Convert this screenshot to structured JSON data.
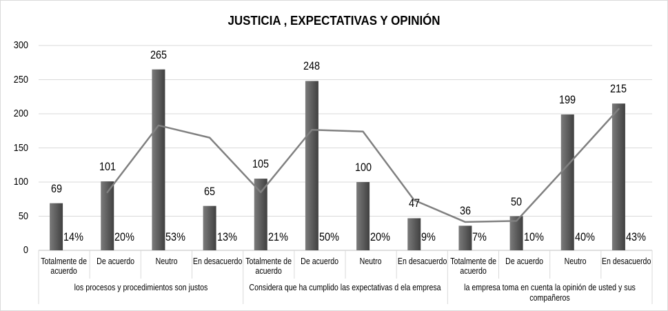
{
  "chart_data": {
    "type": "bar",
    "title": "JUSTICIA , EXPECTATIVAS Y OPINIÓN",
    "ylim": [
      0,
      300
    ],
    "yticks": [
      0,
      50,
      100,
      150,
      200,
      250,
      300
    ],
    "grid": true,
    "groups": [
      {
        "label": "los procesos y procedimientos son justos",
        "categories": [
          "Totalmente de acuerdo",
          "De acuerdo",
          "Neutro",
          "En desacuerdo"
        ]
      },
      {
        "label": "Considera que ha cumplido las expectativas d ela empresa",
        "categories": [
          "Totalmente de acuerdo",
          "De acuerdo",
          "Neutro",
          "En desacuerdo"
        ]
      },
      {
        "label": "la empresa toma en cuenta la opinión de usted y sus compañeros",
        "categories": [
          "Totalmente de acuerdo",
          "De acuerdo",
          "Neutro",
          "En desacuerdo"
        ]
      }
    ],
    "values": [
      69,
      101,
      265,
      65,
      105,
      248,
      100,
      47,
      36,
      50,
      199,
      215
    ],
    "percentages": [
      "14%",
      "20%",
      "53%",
      "13%",
      "21%",
      "50%",
      "20%",
      "9%",
      "7%",
      "10%",
      "40%",
      "43%"
    ],
    "trend_values": [
      null,
      85,
      183,
      165,
      85,
      176.5,
      174,
      73.5,
      41.5,
      43,
      124.5,
      207
    ]
  },
  "colors": {
    "bar_light": "#7b7b7b",
    "bar_dark": "#404040",
    "trend": "#808080",
    "grid": "#d9d9d9",
    "axis": "#bfbfbf"
  }
}
